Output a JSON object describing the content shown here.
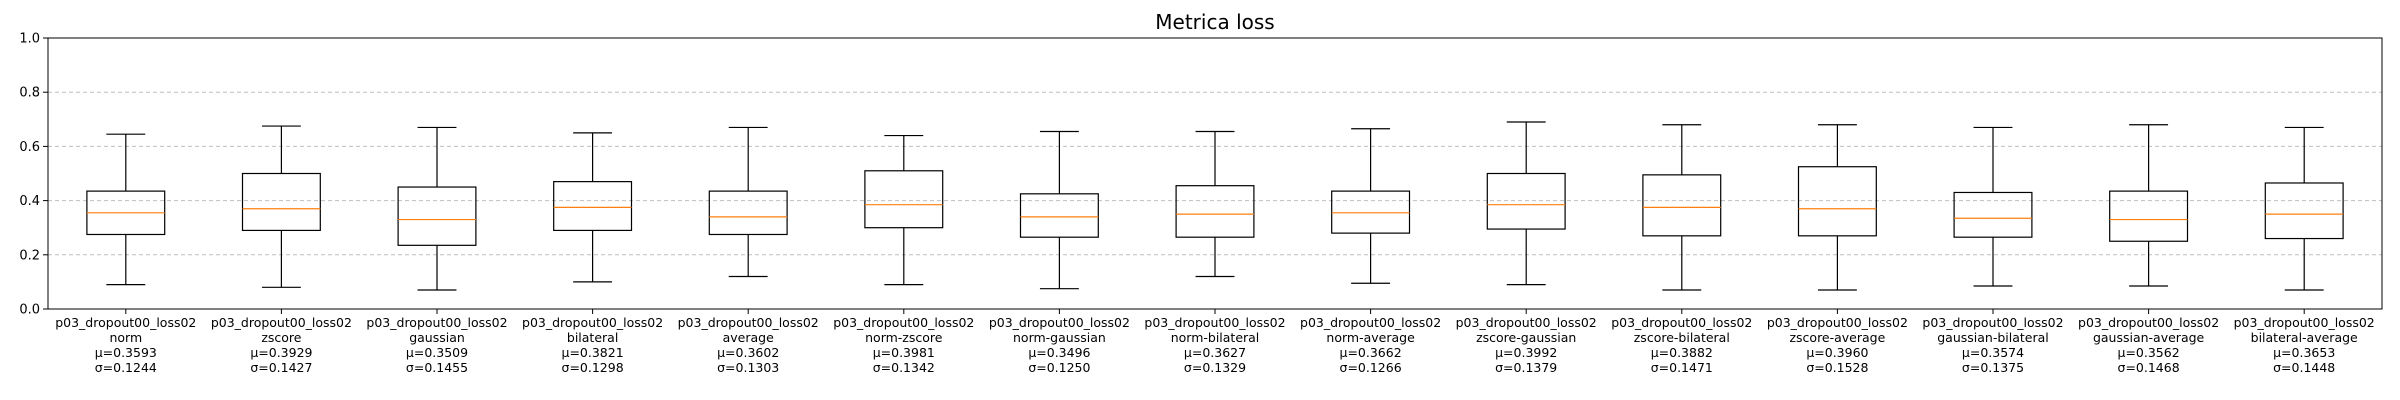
{
  "chart_data": {
    "type": "box",
    "title": "Metrica loss",
    "xlabel": "",
    "ylabel": "",
    "ylim": [
      0,
      1.0
    ],
    "yticks": [
      "0.0",
      "0.2",
      "0.4",
      "0.6",
      "0.8",
      "1.0"
    ],
    "grid": "y-dashed",
    "colors": {
      "box": "#000000",
      "median": "#ff7f0e",
      "grid": "#b0b0b0"
    },
    "boxes": [
      {
        "label_lines": [
          "p03_dropout00_loss02",
          "norm",
          "μ=0.3593",
          "σ=0.1244"
        ],
        "whislo": 0.09,
        "q1": 0.275,
        "median": 0.355,
        "q3": 0.435,
        "whishi": 0.645
      },
      {
        "label_lines": [
          "p03_dropout00_loss02",
          "zscore",
          "μ=0.3929",
          "σ=0.1427"
        ],
        "whislo": 0.08,
        "q1": 0.29,
        "median": 0.37,
        "q3": 0.5,
        "whishi": 0.675
      },
      {
        "label_lines": [
          "p03_dropout00_loss02",
          "gaussian",
          "μ=0.3509",
          "σ=0.1455"
        ],
        "whislo": 0.07,
        "q1": 0.235,
        "median": 0.33,
        "q3": 0.45,
        "whishi": 0.67
      },
      {
        "label_lines": [
          "p03_dropout00_loss02",
          "bilateral",
          "μ=0.3821",
          "σ=0.1298"
        ],
        "whislo": 0.1,
        "q1": 0.29,
        "median": 0.375,
        "q3": 0.47,
        "whishi": 0.65
      },
      {
        "label_lines": [
          "p03_dropout00_loss02",
          "average",
          "μ=0.3602",
          "σ=0.1303"
        ],
        "whislo": 0.12,
        "q1": 0.275,
        "median": 0.34,
        "q3": 0.435,
        "whishi": 0.67
      },
      {
        "label_lines": [
          "p03_dropout00_loss02",
          "norm-zscore",
          "μ=0.3981",
          "σ=0.1342"
        ],
        "whislo": 0.09,
        "q1": 0.3,
        "median": 0.385,
        "q3": 0.51,
        "whishi": 0.64
      },
      {
        "label_lines": [
          "p03_dropout00_loss02",
          "norm-gaussian",
          "μ=0.3496",
          "σ=0.1250"
        ],
        "whislo": 0.075,
        "q1": 0.265,
        "median": 0.34,
        "q3": 0.425,
        "whishi": 0.655
      },
      {
        "label_lines": [
          "p03_dropout00_loss02",
          "norm-bilateral",
          "μ=0.3627",
          "σ=0.1329"
        ],
        "whislo": 0.12,
        "q1": 0.265,
        "median": 0.35,
        "q3": 0.455,
        "whishi": 0.655
      },
      {
        "label_lines": [
          "p03_dropout00_loss02",
          "norm-average",
          "μ=0.3662",
          "σ=0.1266"
        ],
        "whislo": 0.095,
        "q1": 0.28,
        "median": 0.355,
        "q3": 0.435,
        "whishi": 0.665
      },
      {
        "label_lines": [
          "p03_dropout00_loss02",
          "zscore-gaussian",
          "μ=0.3992",
          "σ=0.1379"
        ],
        "whislo": 0.09,
        "q1": 0.295,
        "median": 0.385,
        "q3": 0.5,
        "whishi": 0.69
      },
      {
        "label_lines": [
          "p03_dropout00_loss02",
          "zscore-bilateral",
          "μ=0.3882",
          "σ=0.1471"
        ],
        "whislo": 0.07,
        "q1": 0.27,
        "median": 0.375,
        "q3": 0.495,
        "whishi": 0.68
      },
      {
        "label_lines": [
          "p03_dropout00_loss02",
          "zscore-average",
          "μ=0.3960",
          "σ=0.1528"
        ],
        "whislo": 0.07,
        "q1": 0.27,
        "median": 0.37,
        "q3": 0.525,
        "whishi": 0.68
      },
      {
        "label_lines": [
          "p03_dropout00_loss02",
          "gaussian-bilateral",
          "μ=0.3574",
          "σ=0.1375"
        ],
        "whislo": 0.085,
        "q1": 0.265,
        "median": 0.335,
        "q3": 0.43,
        "whishi": 0.67
      },
      {
        "label_lines": [
          "p03_dropout00_loss02",
          "gaussian-average",
          "μ=0.3562",
          "σ=0.1468"
        ],
        "whislo": 0.085,
        "q1": 0.25,
        "median": 0.33,
        "q3": 0.435,
        "whishi": 0.68
      },
      {
        "label_lines": [
          "p03_dropout00_loss02",
          "bilateral-average",
          "μ=0.3653",
          "σ=0.1448"
        ],
        "whislo": 0.07,
        "q1": 0.26,
        "median": 0.35,
        "q3": 0.465,
        "whishi": 0.67
      }
    ]
  }
}
